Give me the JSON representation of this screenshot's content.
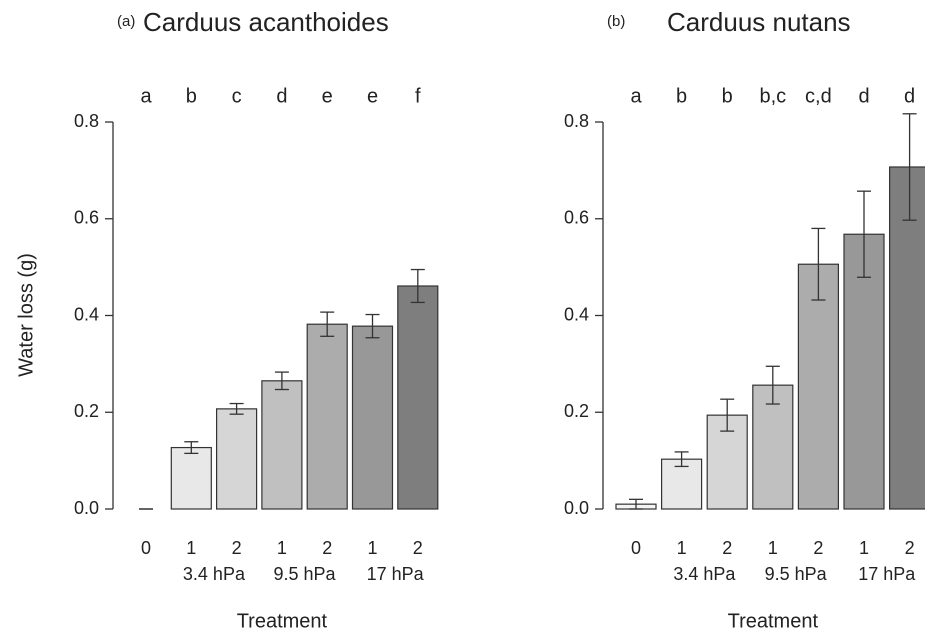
{
  "chart_data": [
    {
      "type": "bar",
      "panel_label": "(a)",
      "title": "Carduus acanthoides",
      "y_label": "Water loss (g)",
      "x_label": "Treatment",
      "categories": [
        "0",
        "1",
        "2",
        "1",
        "2",
        "1",
        "2"
      ],
      "group_labels": [
        "3.4 hPa",
        "9.5 hPa",
        "17 hPa"
      ],
      "significance": [
        "a",
        "b",
        "c",
        "d",
        "e",
        "e",
        "f"
      ],
      "values": [
        0,
        0.127,
        0.207,
        0.265,
        0.382,
        0.378,
        0.461
      ],
      "errors": [
        0,
        0.012,
        0.011,
        0.018,
        0.025,
        0.024,
        0.034
      ],
      "colors": [
        "#f4f4f4",
        "#e8e8e8",
        "#d6d6d6",
        "#c0c0c0",
        "#acacac",
        "#989898",
        "#7e7e7e"
      ],
      "ylim": [
        0,
        0.8
      ],
      "yticks": [
        {
          "value": 0,
          "label": "0.0"
        },
        0.2,
        0.4,
        0.6,
        0.8
      ]
    },
    {
      "type": "bar",
      "panel_label": "(b)",
      "title": "Carduus nutans",
      "x_label": "Treatment",
      "categories": [
        "0",
        "1",
        "2",
        "1",
        "2",
        "1",
        "2"
      ],
      "group_labels": [
        "3.4 hPa",
        "9.5 hPa",
        "17 hPa"
      ],
      "significance": [
        "a",
        "b",
        "b",
        "b,c",
        "c,d",
        "d",
        "d"
      ],
      "values": [
        0.01,
        0.103,
        0.194,
        0.256,
        0.506,
        0.568,
        0.707
      ],
      "errors": [
        0.01,
        0.015,
        0.033,
        0.039,
        0.074,
        0.089,
        0.11
      ],
      "colors": [
        "#f4f4f4",
        "#e8e8e8",
        "#d6d6d6",
        "#c0c0c0",
        "#acacac",
        "#989898",
        "#7e7e7e"
      ],
      "ylim": [
        0,
        0.8
      ],
      "yticks": [
        {
          "value": 0,
          "label": "0.0"
        },
        0.2,
        0.4,
        0.6,
        0.8
      ]
    }
  ]
}
